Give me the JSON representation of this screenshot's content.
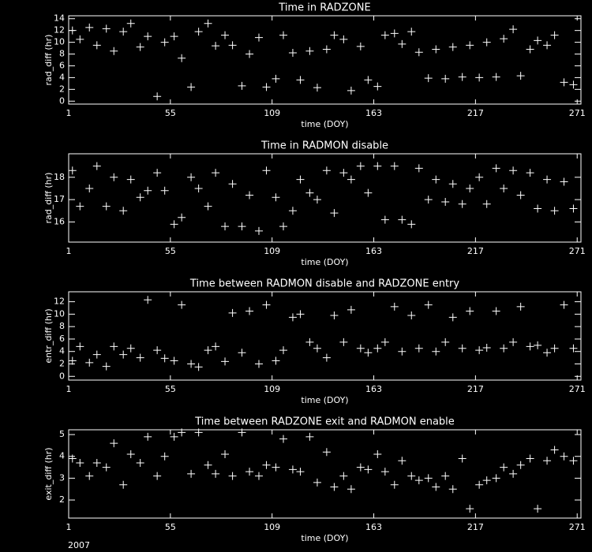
{
  "chart_data": [
    {
      "type": "scatter",
      "title": "Time in RADZONE",
      "xlabel": "time (DOY)",
      "ylabel": "rad_diff (hr)",
      "color": "#ffffff",
      "xlim": [
        1,
        273
      ],
      "xticks": [
        1,
        55,
        109,
        163,
        217,
        271
      ],
      "ylim": [
        -0.5,
        14.5
      ],
      "yticks": [
        0,
        2,
        4,
        6,
        8,
        10,
        12,
        14
      ],
      "x": [
        3,
        7,
        12,
        16,
        21,
        25,
        30,
        34,
        39,
        43,
        48,
        52,
        57,
        61,
        66,
        70,
        75,
        79,
        84,
        88,
        93,
        97,
        102,
        106,
        111,
        115,
        120,
        124,
        129,
        133,
        138,
        142,
        147,
        151,
        156,
        160,
        165,
        169,
        174,
        178,
        183,
        187,
        192,
        196,
        201,
        205,
        210,
        214,
        219,
        223,
        228,
        232,
        237,
        241,
        246,
        250,
        255,
        259,
        264,
        269
      ],
      "y": [
        12,
        10.5,
        12.5,
        9.5,
        12.3,
        8.5,
        11.8,
        13.2,
        9.2,
        11,
        0.8,
        10,
        11,
        7.3,
        2.4,
        11.8,
        13.2,
        9.4,
        11.2,
        9.5,
        2.6,
        8,
        10.8,
        2.4,
        3.8,
        11.2,
        8.2,
        3.6,
        8.5,
        2.3,
        8.8,
        11.2,
        10.5,
        1.8,
        9.3,
        3.6,
        2.5,
        11.2,
        11.5,
        9.7,
        11.8,
        8.3,
        3.9,
        8.8,
        3.8,
        9.2,
        4.1,
        9.5,
        4,
        10,
        4.1,
        10.6,
        12.2,
        4.3,
        8.8,
        10.3,
        9.5,
        11.2,
        3.2,
        2.8
      ]
    },
    {
      "type": "scatter",
      "title": "Time in RADMON disable",
      "xlabel": "time (DOY)",
      "ylabel": "rad_diff (hr)",
      "color": "#ffffff",
      "xlim": [
        1,
        273
      ],
      "xticks": [
        1,
        55,
        109,
        163,
        217,
        271
      ],
      "ylim": [
        15.1,
        19.05
      ],
      "yticks": [
        16,
        17,
        18
      ],
      "x": [
        3,
        7,
        12,
        16,
        21,
        25,
        30,
        34,
        39,
        43,
        48,
        52,
        57,
        61,
        66,
        70,
        75,
        79,
        84,
        88,
        93,
        97,
        102,
        106,
        111,
        115,
        120,
        124,
        129,
        133,
        138,
        142,
        147,
        151,
        156,
        160,
        165,
        169,
        174,
        178,
        183,
        187,
        192,
        196,
        201,
        205,
        210,
        214,
        219,
        223,
        228,
        232,
        237,
        241,
        246,
        250,
        255,
        259,
        264,
        269
      ],
      "y": [
        18.3,
        16.7,
        17.5,
        18.5,
        16.7,
        18,
        16.5,
        17.9,
        17.1,
        17.4,
        18.2,
        17.4,
        15.9,
        16.2,
        18,
        17.5,
        16.7,
        18.2,
        15.8,
        17.7,
        15.8,
        17.2,
        15.6,
        18.3,
        17.1,
        15.8,
        16.5,
        17.9,
        17.3,
        17,
        18.3,
        16.4,
        18.2,
        17.9,
        18.5,
        17.3,
        18.5,
        16.1,
        18.5,
        16.1,
        15.9,
        18.4,
        17,
        17.9,
        16.9,
        17.7,
        16.8,
        17.5,
        18,
        16.8,
        18.4,
        17.5,
        18.3,
        17.2,
        18.2,
        16.6,
        17.9,
        16.5,
        17.8,
        16.6
      ]
    },
    {
      "type": "scatter",
      "title": "Time between RADMON disable and RADZONE entry",
      "xlabel": "time (DOY)",
      "ylabel": "entr_diff (hr)",
      "color": "#ffffff",
      "xlim": [
        1,
        273
      ],
      "xticks": [
        1,
        55,
        109,
        163,
        217,
        271
      ],
      "ylim": [
        -0.6,
        13.6
      ],
      "yticks": [
        0,
        2,
        4,
        6,
        8,
        10,
        12
      ],
      "x": [
        3,
        7,
        12,
        16,
        21,
        25,
        30,
        34,
        39,
        43,
        48,
        52,
        57,
        61,
        66,
        70,
        75,
        79,
        84,
        88,
        93,
        97,
        102,
        106,
        111,
        115,
        120,
        124,
        129,
        133,
        138,
        142,
        147,
        151,
        156,
        160,
        165,
        169,
        174,
        178,
        183,
        187,
        192,
        196,
        201,
        205,
        210,
        214,
        219,
        223,
        228,
        232,
        237,
        241,
        246,
        250,
        255,
        259,
        264,
        269
      ],
      "y": [
        2.5,
        4.8,
        2.2,
        3.5,
        1.6,
        4.8,
        3.5,
        4.5,
        3,
        12.3,
        4.2,
        2.9,
        2.5,
        11.5,
        2,
        1.5,
        4.2,
        4.8,
        2.4,
        10.2,
        3.8,
        10.5,
        2,
        11.5,
        2.5,
        4.2,
        9.5,
        10,
        5.5,
        4.5,
        3,
        9.8,
        5.5,
        10.7,
        4.5,
        3.8,
        4.5,
        5.5,
        11.2,
        4,
        9.8,
        4.5,
        11.5,
        4,
        5.5,
        9.5,
        4.5,
        10.5,
        4.2,
        4.6,
        10.5,
        4.5,
        5.5,
        11.2,
        4.8,
        5,
        3.8,
        4.5,
        11.5,
        4.5
      ]
    },
    {
      "type": "scatter",
      "title": "Time between RADZONE exit and RADMON enable",
      "xlabel": "time (DOY)",
      "ylabel": "exit_diff (hr)",
      "color": "#ffffff",
      "xlim": [
        1,
        273
      ],
      "xticks": [
        1,
        55,
        109,
        163,
        217,
        271
      ],
      "ylim": [
        1.17,
        5.22
      ],
      "yticks": [
        2,
        3,
        4,
        5
      ],
      "x": [
        3,
        7,
        12,
        16,
        21,
        25,
        30,
        34,
        39,
        43,
        48,
        52,
        57,
        61,
        66,
        70,
        75,
        79,
        84,
        88,
        93,
        97,
        102,
        106,
        111,
        115,
        120,
        124,
        129,
        133,
        138,
        142,
        147,
        151,
        156,
        160,
        165,
        169,
        174,
        178,
        183,
        187,
        192,
        196,
        201,
        205,
        210,
        214,
        219,
        223,
        228,
        232,
        237,
        241,
        246,
        250,
        255,
        259,
        264,
        269
      ],
      "y": [
        3.9,
        3.7,
        3.1,
        3.7,
        3.5,
        4.6,
        2.7,
        4.1,
        3.7,
        4.9,
        3.1,
        4,
        4.9,
        5.1,
        3.2,
        5.1,
        3.6,
        3.2,
        4.1,
        3.1,
        5.1,
        3.3,
        3.1,
        3.6,
        3.5,
        4.8,
        3.4,
        3.3,
        4.9,
        2.8,
        4.2,
        2.6,
        3.1,
        2.5,
        3.5,
        3.4,
        4.1,
        3.3,
        2.7,
        3.8,
        3.1,
        2.9,
        3,
        2.6,
        3.1,
        2.5,
        3.9,
        1.6,
        2.7,
        2.9,
        3,
        3.5,
        3.2,
        3.6,
        3.9,
        1.6,
        3.8,
        4.3,
        4,
        3.8
      ]
    }
  ],
  "annotation": "2007"
}
